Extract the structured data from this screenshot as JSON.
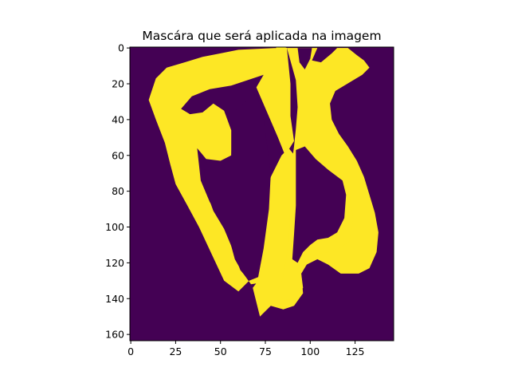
{
  "chart_data": {
    "type": "heatmap",
    "title": "Mascára que será aplicada na imagem",
    "xlabel": "",
    "ylabel": "",
    "image_width": 147,
    "image_height": 164,
    "xlim": [
      -0.5,
      146.5
    ],
    "ylim": [
      163.5,
      -0.5
    ],
    "x_ticks": [
      0,
      25,
      50,
      75,
      100,
      125
    ],
    "y_ticks": [
      0,
      20,
      40,
      60,
      80,
      100,
      120,
      140,
      160
    ],
    "colormap": "viridis",
    "values_shown": [
      0,
      1
    ],
    "background_color": "#440154",
    "mask_color": "#fde725",
    "grid": false,
    "mask_regions": [
      {
        "name": "left-arm",
        "points": [
          [
            60,
            1
          ],
          [
            81,
            0
          ],
          [
            81,
            6
          ],
          [
            74,
            15
          ],
          [
            56,
            21
          ],
          [
            44,
            23
          ],
          [
            34,
            27
          ],
          [
            28,
            34
          ],
          [
            33,
            37
          ],
          [
            40,
            36
          ],
          [
            46,
            31
          ],
          [
            52,
            35
          ],
          [
            56,
            46
          ],
          [
            56,
            60
          ],
          [
            50,
            63
          ],
          [
            42,
            62
          ],
          [
            37,
            56
          ],
          [
            39,
            74
          ],
          [
            44,
            86
          ],
          [
            50,
            95
          ],
          [
            55,
            107
          ],
          [
            58,
            118
          ],
          [
            62,
            125
          ],
          [
            67,
            132
          ],
          [
            73,
            131
          ],
          [
            77,
            120
          ],
          [
            79,
            100
          ],
          [
            80,
            80
          ],
          [
            82,
            66
          ],
          [
            86,
            60
          ],
          [
            91,
            52
          ],
          [
            89,
            38
          ],
          [
            89,
            20
          ],
          [
            87,
            0
          ],
          [
            81,
            -2
          ],
          [
            81,
            6
          ],
          [
            74,
            15
          ],
          [
            70,
            22
          ],
          [
            82,
            50
          ],
          [
            86,
            60
          ],
          [
            82,
            66
          ],
          [
            78,
            84
          ],
          [
            77,
            106
          ],
          [
            74,
            126
          ],
          [
            68,
            134
          ],
          [
            72,
            150
          ],
          [
            78,
            144
          ],
          [
            85,
            146
          ],
          [
            91,
            144
          ],
          [
            96,
            137
          ],
          [
            95,
            126
          ],
          [
            98,
            121
          ],
          [
            104,
            115
          ],
          [
            104,
            105
          ],
          [
            103,
            90
          ],
          [
            97,
            72
          ],
          [
            93,
            62
          ],
          [
            88,
            56
          ],
          [
            84,
            60
          ],
          [
            78,
            72
          ],
          [
            74,
            96
          ],
          [
            70,
            118
          ],
          [
            66,
            130
          ],
          [
            60,
            136
          ],
          [
            52,
            130
          ],
          [
            45,
            115
          ],
          [
            38,
            100
          ],
          [
            31,
            87
          ],
          [
            25,
            76
          ],
          [
            22,
            65
          ],
          [
            19,
            53
          ],
          [
            14,
            40
          ],
          [
            10,
            29
          ],
          [
            14,
            17
          ],
          [
            20,
            11
          ],
          [
            30,
            8
          ],
          [
            40,
            5
          ],
          [
            50,
            3
          ]
        ]
      },
      {
        "name": "right-arm",
        "points": [
          [
            87,
            0
          ],
          [
            104,
            0
          ],
          [
            101,
            7
          ],
          [
            106,
            8
          ],
          [
            112,
            3
          ],
          [
            115,
            0
          ],
          [
            121,
            0
          ],
          [
            126,
            4
          ],
          [
            130,
            7
          ],
          [
            133,
            11
          ],
          [
            129,
            15
          ],
          [
            124,
            18
          ],
          [
            114,
            24
          ],
          [
            111,
            31
          ],
          [
            112,
            40
          ],
          [
            116,
            48
          ],
          [
            121,
            55
          ],
          [
            126,
            63
          ],
          [
            130,
            72
          ],
          [
            133,
            82
          ],
          [
            136,
            92
          ],
          [
            138,
            103
          ],
          [
            137,
            114
          ],
          [
            133,
            123
          ],
          [
            127,
            126
          ],
          [
            117,
            126
          ],
          [
            110,
            121
          ],
          [
            104,
            118
          ],
          [
            98,
            121
          ],
          [
            95,
            126
          ],
          [
            96,
            134
          ],
          [
            91,
            140
          ],
          [
            85,
            141
          ],
          [
            82,
            135
          ],
          [
            85,
            128
          ],
          [
            88,
            108
          ],
          [
            89,
            88
          ],
          [
            89,
            70
          ],
          [
            91,
            55
          ],
          [
            92,
            45
          ],
          [
            93,
            33
          ],
          [
            92,
            18
          ]
        ]
      },
      {
        "name": "inner-right",
        "points": [
          [
            96,
            52
          ],
          [
            100,
            58
          ],
          [
            108,
            68
          ],
          [
            116,
            74
          ],
          [
            122,
            82
          ],
          [
            124,
            96
          ],
          [
            122,
            108
          ],
          [
            116,
            112
          ],
          [
            110,
            114
          ],
          [
            104,
            115
          ],
          [
            104,
            105
          ],
          [
            103,
            90
          ],
          [
            97,
            72
          ],
          [
            93,
            62
          ]
        ]
      }
    ],
    "mask_holes": [
      {
        "name": "left-gap",
        "points": [
          [
            57,
            36
          ],
          [
            64,
            30
          ],
          [
            70,
            25
          ],
          [
            74,
            40
          ],
          [
            76,
            55
          ],
          [
            78,
            70
          ],
          [
            77,
            90
          ],
          [
            74,
            112
          ],
          [
            71,
            128
          ],
          [
            66,
            130
          ],
          [
            61,
            124
          ],
          [
            57,
            113
          ],
          [
            52,
            101
          ],
          [
            46,
            91
          ],
          [
            42,
            80
          ],
          [
            41,
            68
          ],
          [
            44,
            63
          ],
          [
            50,
            64
          ],
          [
            56,
            60
          ]
        ]
      },
      {
        "name": "right-gap",
        "points": [
          [
            92,
            57
          ],
          [
            97,
            55
          ],
          [
            103,
            62
          ],
          [
            110,
            68
          ],
          [
            118,
            74
          ],
          [
            120,
            82
          ],
          [
            119,
            95
          ],
          [
            115,
            103
          ],
          [
            110,
            106
          ],
          [
            104,
            107
          ],
          [
            100,
            110
          ],
          [
            96,
            114
          ],
          [
            93,
            120
          ],
          [
            90,
            118
          ],
          [
            91,
            104
          ],
          [
            92,
            88
          ],
          [
            92,
            72
          ]
        ]
      },
      {
        "name": "top-notch",
        "points": [
          [
            93,
            0
          ],
          [
            101,
            0
          ],
          [
            100,
            6
          ],
          [
            97,
            12
          ],
          [
            94,
            8
          ]
        ]
      }
    ]
  }
}
